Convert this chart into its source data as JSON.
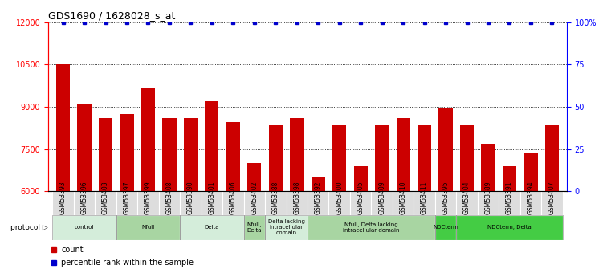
{
  "title": "GDS1690 / 1628028_s_at",
  "samples": [
    "GSM53393",
    "GSM53396",
    "GSM53403",
    "GSM53397",
    "GSM53399",
    "GSM53408",
    "GSM53390",
    "GSM53401",
    "GSM53406",
    "GSM53402",
    "GSM53388",
    "GSM53398",
    "GSM53392",
    "GSM53400",
    "GSM53405",
    "GSM53409",
    "GSM53410",
    "GSM53411",
    "GSM53395",
    "GSM53404",
    "GSM53389",
    "GSM53391",
    "GSM53394",
    "GSM53407"
  ],
  "counts": [
    10500,
    9100,
    8600,
    8750,
    9650,
    8600,
    8600,
    9200,
    8450,
    7000,
    8350,
    8600,
    6500,
    8350,
    6900,
    8350,
    8600,
    8350,
    8950,
    8350,
    7700,
    6900,
    7350,
    8350
  ],
  "ylim": [
    6000,
    12000
  ],
  "y2lim": [
    0,
    100
  ],
  "yticks": [
    6000,
    7500,
    9000,
    10500,
    12000
  ],
  "y2ticks": [
    0,
    25,
    50,
    75,
    100
  ],
  "groups": [
    {
      "label": "control",
      "start": 0,
      "end": 2,
      "color": "#d4edda"
    },
    {
      "label": "Nfull",
      "start": 3,
      "end": 5,
      "color": "#a8d5a2"
    },
    {
      "label": "Delta",
      "start": 6,
      "end": 8,
      "color": "#d4edda"
    },
    {
      "label": "Nfull,\nDelta",
      "start": 9,
      "end": 9,
      "color": "#a8d5a2"
    },
    {
      "label": "Delta lacking\nintracellular\ndomain",
      "start": 10,
      "end": 11,
      "color": "#d4edda"
    },
    {
      "label": "Nfull, Delta lacking\nintracellular domain",
      "start": 12,
      "end": 17,
      "color": "#a8d5a2"
    },
    {
      "label": "NDCterm",
      "start": 18,
      "end": 18,
      "color": "#44cc44"
    },
    {
      "label": "NDCterm, Delta",
      "start": 19,
      "end": 23,
      "color": "#44cc44"
    }
  ],
  "legend_count_label": "count",
  "legend_pct_label": "percentile rank within the sample",
  "bar_color": "#cc0000",
  "dot_color": "#0000cc",
  "tick_label_bg": "#dddddd"
}
